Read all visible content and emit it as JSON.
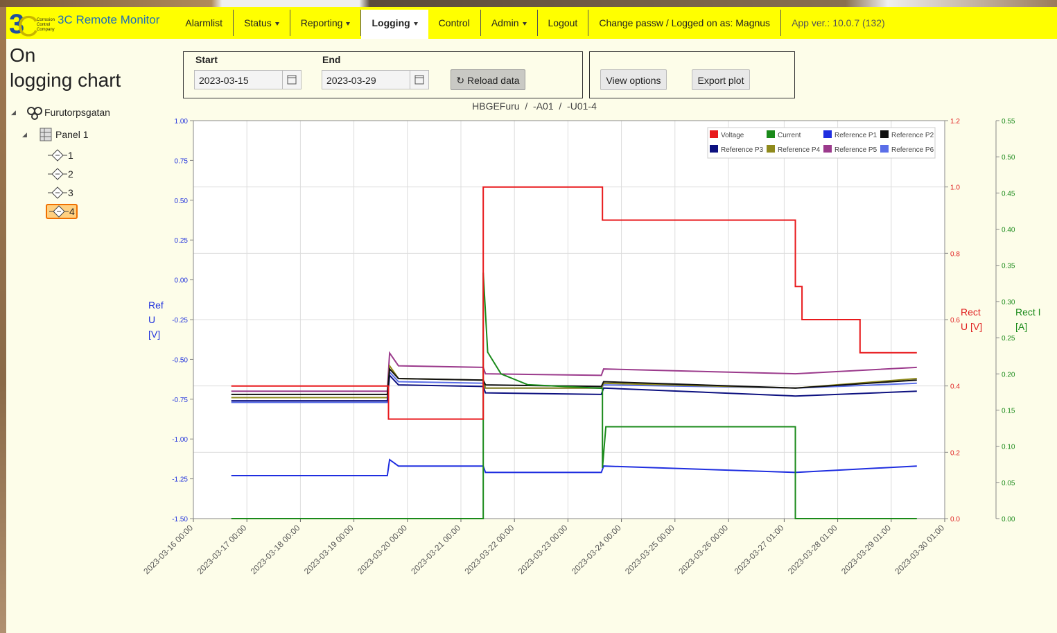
{
  "header": {
    "logo_text": [
      "Corrosion",
      "Control",
      "Company"
    ],
    "brand": "3C Remote Monitor",
    "nav": [
      {
        "label": "Alarmlist",
        "dropdown": false,
        "active": false
      },
      {
        "label": "Status",
        "dropdown": true,
        "active": false
      },
      {
        "label": "Reporting",
        "dropdown": true,
        "active": false
      },
      {
        "label": "Logging",
        "dropdown": true,
        "active": true
      },
      {
        "label": "Control",
        "dropdown": false,
        "active": false
      },
      {
        "label": "Admin",
        "dropdown": true,
        "active": false
      },
      {
        "label": "Logout",
        "dropdown": false,
        "active": false
      },
      {
        "label": "Change passw / Logged on as: Magnus",
        "dropdown": false,
        "active": false
      }
    ],
    "app_version": "App ver.: 10.0.7 (132)"
  },
  "page_title": [
    "On",
    "logging chart"
  ],
  "tree": {
    "root": "Furutorpsgatan",
    "panel": "Panel 1",
    "items": [
      "1",
      "2",
      "3",
      "4"
    ],
    "selected": 3
  },
  "form": {
    "start_label": "Start",
    "start_value": "2023-03-15",
    "end_label": "End",
    "end_value": "2023-03-29",
    "reload": "Reload data",
    "view_options": "View options",
    "export": "Export plot"
  },
  "chart_data": {
    "type": "line",
    "title": "HBGEFuru  /  -A01  /  -U01-4",
    "y_label": [
      "Ref",
      "U",
      "[V]"
    ],
    "y2_label": [
      "Rect",
      "U [V]"
    ],
    "y3_label": [
      "Rect I",
      "[A]"
    ],
    "xlim": [
      "2023-03-16 00:00",
      "2023-03-30 01:00"
    ],
    "xticks": [
      "2023-03-16 00:00",
      "2023-03-17 00:00",
      "2023-03-18 00:00",
      "2023-03-19 00:00",
      "2023-03-20 00:00",
      "2023-03-21 00:00",
      "2023-03-22 00:00",
      "2023-03-23 00:00",
      "2023-03-24 00:00",
      "2023-03-25 00:00",
      "2023-03-26 00:00",
      "2023-03-27 01:00",
      "2023-03-28 01:00",
      "2023-03-29 01:00",
      "2023-03-30 01:00"
    ],
    "ylim": [
      -1.5,
      1.0
    ],
    "yticks": [
      {
        "value": -1.5,
        "label": "-1.50"
      },
      {
        "value": -1.25,
        "label": "-1.25"
      },
      {
        "value": -1.0,
        "label": "-1.00"
      },
      {
        "value": -0.75,
        "label": "-0.75"
      },
      {
        "value": -0.5,
        "label": "-0.50"
      },
      {
        "value": -0.25,
        "label": "-0.25"
      },
      {
        "value": 0,
        "label": "0.00"
      },
      0.25,
      {
        "value": 0.5,
        "label": "0.50"
      },
      0.75,
      {
        "value": 1.0,
        "label": "1.00"
      }
    ],
    "y2lim": [
      0,
      1.2
    ],
    "y2ticks": [
      {
        "value": 0,
        "label": "0.0"
      },
      0.2,
      0.4,
      0.6,
      0.8,
      {
        "value": 1.0,
        "label": "1.0"
      },
      1.2
    ],
    "y3lim": [
      0,
      0.55
    ],
    "y3ticks": [
      {
        "value": 0,
        "label": "0.00"
      },
      0.05,
      {
        "value": 0.1,
        "label": "0.10"
      },
      0.15,
      {
        "value": 0.2,
        "label": "0.20"
      },
      0.25,
      {
        "value": 0.3,
        "label": "0.30"
      },
      0.35,
      {
        "value": 0.4,
        "label": "0.40"
      },
      0.45,
      {
        "value": 0.5,
        "label": "0.50"
      },
      0.55
    ],
    "y_color": "#2233dd",
    "y2_color": "#e02020",
    "y3_color": "#1a8a1a",
    "grid": true,
    "legend": "top-right",
    "series": [
      {
        "name": "Voltage",
        "color": "#e8191c",
        "axis": "y2",
        "x": [
          "2023-03-16 17:00",
          "2023-03-19 15:30",
          "2023-03-19 15:30",
          "2023-03-21 10:00",
          "2023-03-21 10:00",
          "2023-03-23 15:30",
          "2023-03-23 15:30",
          "2023-03-27 06:00",
          "2023-03-27 06:00",
          "2023-03-27 09:00",
          "2023-03-27 09:00",
          "2023-03-28 11:00",
          "2023-03-28 11:00",
          "2023-03-29 12:30"
        ],
        "values": [
          0.4,
          0.4,
          0.3,
          0.3,
          1.0,
          1.0,
          0.9,
          0.9,
          0.7,
          0.7,
          0.6,
          0.6,
          0.5,
          0.5
        ]
      },
      {
        "name": "Current",
        "color": "#1a8a1a",
        "axis": "y3",
        "x": [
          "2023-03-16 17:00",
          "2023-03-21 10:00",
          "2023-03-21 10:00",
          "2023-03-21 12:00",
          "2023-03-21 18:00",
          "2023-03-22 06:00",
          "2023-03-23 15:30",
          "2023-03-23 15:30",
          "2023-03-23 17:00",
          "2023-03-27 06:00",
          "2023-03-27 06:00",
          "2023-03-29 12:30"
        ],
        "values": [
          0,
          0,
          0.34,
          0.23,
          0.2,
          0.185,
          0.18,
          0.07,
          0.127,
          0.127,
          0,
          0
        ]
      },
      {
        "name": "Reference P1",
        "color": "#1f2ee0",
        "axis": "y",
        "x": [
          "2023-03-16 17:00",
          "2023-03-19 15:00",
          "2023-03-19 16:00",
          "2023-03-19 20:00",
          "2023-03-21 10:00",
          "2023-03-21 11:00",
          "2023-03-23 15:00",
          "2023-03-23 16:00",
          "2023-03-27 06:00",
          "2023-03-29 12:30"
        ],
        "values": [
          -1.23,
          -1.23,
          -1.13,
          -1.17,
          -1.17,
          -1.21,
          -1.21,
          -1.17,
          -1.21,
          -1.17
        ]
      },
      {
        "name": "Reference P2",
        "color": "#111111",
        "axis": "y",
        "x": [
          "2023-03-16 17:00",
          "2023-03-19 15:00",
          "2023-03-19 16:00",
          "2023-03-19 20:00",
          "2023-03-21 10:00",
          "2023-03-21 11:00",
          "2023-03-23 15:00",
          "2023-03-23 16:00",
          "2023-03-27 06:00",
          "2023-03-29 12:30"
        ],
        "values": [
          -0.72,
          -0.72,
          -0.56,
          -0.62,
          -0.63,
          -0.66,
          -0.67,
          -0.64,
          -0.68,
          -0.63
        ]
      },
      {
        "name": "Reference P3",
        "color": "#0d1180",
        "axis": "y",
        "x": [
          "2023-03-16 17:00",
          "2023-03-19 15:00",
          "2023-03-19 16:00",
          "2023-03-19 20:00",
          "2023-03-21 10:00",
          "2023-03-21 11:00",
          "2023-03-23 15:00",
          "2023-03-23 16:00",
          "2023-03-27 06:00",
          "2023-03-29 12:30"
        ],
        "values": [
          -0.76,
          -0.76,
          -0.6,
          -0.66,
          -0.67,
          -0.71,
          -0.72,
          -0.68,
          -0.73,
          -0.7
        ]
      },
      {
        "name": "Reference P4",
        "color": "#8f8a1c",
        "axis": "y",
        "x": [
          "2023-03-16 17:00",
          "2023-03-19 15:00",
          "2023-03-19 16:00",
          "2023-03-19 20:00",
          "2023-03-21 10:00",
          "2023-03-21 11:00",
          "2023-03-23 15:00",
          "2023-03-23 16:00",
          "2023-03-27 06:00",
          "2023-03-29 12:30"
        ],
        "values": [
          -0.74,
          -0.74,
          -0.54,
          -0.62,
          -0.63,
          -0.68,
          -0.68,
          -0.65,
          -0.68,
          -0.62
        ]
      },
      {
        "name": "Reference P5",
        "color": "#9b3a8c",
        "axis": "y",
        "x": [
          "2023-03-16 17:00",
          "2023-03-19 15:00",
          "2023-03-19 16:00",
          "2023-03-19 20:00",
          "2023-03-21 10:00",
          "2023-03-21 11:00",
          "2023-03-23 15:00",
          "2023-03-23 16:00",
          "2023-03-27 06:00",
          "2023-03-29 12:30"
        ],
        "values": [
          -0.7,
          -0.7,
          -0.46,
          -0.54,
          -0.55,
          -0.59,
          -0.6,
          -0.56,
          -0.59,
          -0.55
        ]
      },
      {
        "name": "Reference P6",
        "color": "#5a6ee8",
        "axis": "y",
        "x": [
          "2023-03-16 17:00",
          "2023-03-19 15:00",
          "2023-03-19 16:00",
          "2023-03-19 20:00",
          "2023-03-21 10:00",
          "2023-03-21 11:00",
          "2023-03-23 15:00",
          "2023-03-23 16:00",
          "2023-03-27 06:00",
          "2023-03-29 12:30"
        ],
        "values": [
          -0.77,
          -0.77,
          -0.58,
          -0.64,
          -0.65,
          -0.68,
          -0.68,
          -0.66,
          -0.68,
          -0.65
        ]
      }
    ]
  }
}
